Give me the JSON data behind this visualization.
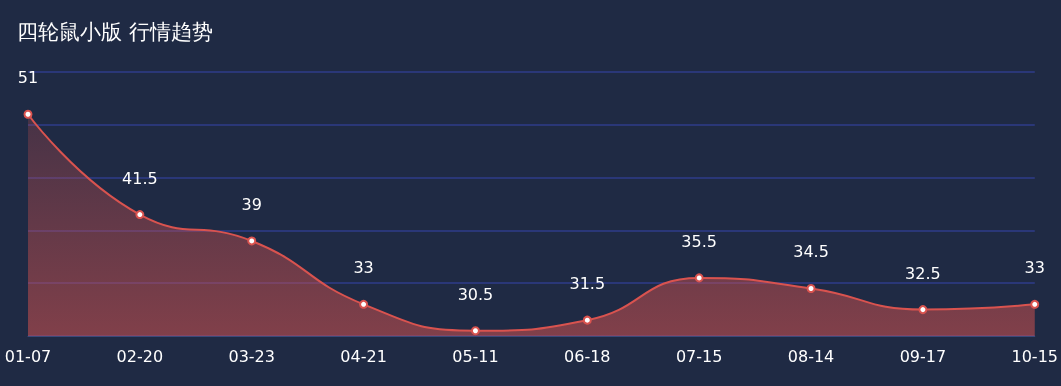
{
  "chart_data": {
    "type": "area",
    "title": "四轮鼠小版 行情趋势",
    "categories": [
      "01-07",
      "02-20",
      "03-23",
      "04-21",
      "05-11",
      "06-18",
      "07-15",
      "08-14",
      "09-17",
      "10-15"
    ],
    "series": [
      {
        "color": "#d9534f",
        "values": [
          51,
          41.5,
          39,
          33,
          30.5,
          31.5,
          35.5,
          34.5,
          32.5,
          33
        ]
      }
    ],
    "ylim": [
      30,
      55
    ],
    "yticks": [
      {
        "value": 30,
        "label": null
      },
      {
        "value": 35,
        "label": null
      },
      {
        "value": 40,
        "label": null
      },
      {
        "value": 45,
        "label": null
      },
      {
        "value": 50,
        "label": null
      },
      {
        "value": 55,
        "label": null
      }
    ],
    "tick_labels": "x",
    "grid": "y",
    "data_labels": true,
    "marker": "circle"
  }
}
